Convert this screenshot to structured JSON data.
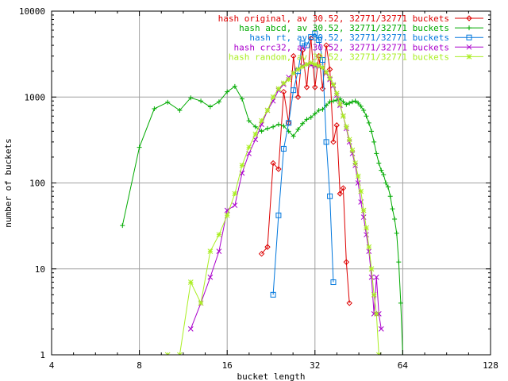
{
  "chart_data": {
    "type": "line",
    "xscale": "log2",
    "yscale": "log10",
    "xlim": [
      4,
      128
    ],
    "ylim": [
      1,
      10000
    ],
    "xticks": [
      4,
      8,
      16,
      32,
      64,
      128
    ],
    "xtick_labels": [
      "4",
      "8",
      "16",
      "32",
      "64",
      "128"
    ],
    "yticks": [
      1,
      10,
      100,
      1000,
      10000
    ],
    "ytick_labels": [
      "1",
      "10",
      "100",
      "1000",
      "10000"
    ],
    "xlabel": "bucket length",
    "ylabel": "number of buckets",
    "grid": true,
    "legend_position": "top-right",
    "series": [
      {
        "name": "hash original, av 30.52, 32771/32771 buckets",
        "color": "#dd0000",
        "marker": "diamond",
        "points": [
          [
            21,
            15
          ],
          [
            22,
            18
          ],
          [
            23,
            170
          ],
          [
            24,
            145
          ],
          [
            25,
            1150
          ],
          [
            26,
            500
          ],
          [
            27,
            3000
          ],
          [
            28,
            1000
          ],
          [
            29,
            3500
          ],
          [
            30,
            1300
          ],
          [
            31,
            4800
          ],
          [
            32,
            1300
          ],
          [
            33,
            3000
          ],
          [
            34,
            1250
          ],
          [
            35,
            4000
          ],
          [
            36,
            2100
          ],
          [
            37,
            300
          ],
          [
            38,
            470
          ],
          [
            39,
            75
          ],
          [
            40,
            87
          ],
          [
            41,
            12
          ],
          [
            42,
            4
          ]
        ]
      },
      {
        "name": "hash abcd, av 30.52, 32771/32771 buckets",
        "color": "#00aa00",
        "marker": "plus",
        "points": [
          [
            7,
            32
          ],
          [
            8,
            260
          ],
          [
            9,
            730
          ],
          [
            10,
            870
          ],
          [
            11,
            700
          ],
          [
            12,
            980
          ],
          [
            13,
            900
          ],
          [
            14,
            770
          ],
          [
            15,
            880
          ],
          [
            16,
            1150
          ],
          [
            17,
            1330
          ],
          [
            18,
            950
          ],
          [
            19,
            530
          ],
          [
            20,
            450
          ],
          [
            21,
            400
          ],
          [
            22,
            430
          ],
          [
            23,
            450
          ],
          [
            24,
            480
          ],
          [
            25,
            460
          ],
          [
            26,
            400
          ],
          [
            27,
            350
          ],
          [
            28,
            420
          ],
          [
            29,
            490
          ],
          [
            30,
            550
          ],
          [
            31,
            580
          ],
          [
            32,
            640
          ],
          [
            33,
            700
          ],
          [
            34,
            720
          ],
          [
            35,
            800
          ],
          [
            36,
            880
          ],
          [
            37,
            900
          ],
          [
            38,
            920
          ],
          [
            39,
            950
          ],
          [
            40,
            880
          ],
          [
            41,
            820
          ],
          [
            42,
            850
          ],
          [
            43,
            880
          ],
          [
            44,
            900
          ],
          [
            45,
            850
          ],
          [
            46,
            780
          ],
          [
            47,
            700
          ],
          [
            48,
            600
          ],
          [
            49,
            500
          ],
          [
            50,
            400
          ],
          [
            51,
            300
          ],
          [
            52,
            220
          ],
          [
            53,
            170
          ],
          [
            54,
            140
          ],
          [
            55,
            125
          ],
          [
            56,
            100
          ],
          [
            57,
            90
          ],
          [
            58,
            70
          ],
          [
            59,
            50
          ],
          [
            60,
            38
          ],
          [
            61,
            26
          ],
          [
            62,
            12
          ],
          [
            63,
            4
          ],
          [
            64,
            1
          ]
        ]
      },
      {
        "name": "hash rt, av 30.52, 32771/32771 buckets",
        "color": "#0077dd",
        "marker": "square",
        "points": [
          [
            23,
            5
          ],
          [
            24,
            42
          ],
          [
            25,
            250
          ],
          [
            26,
            500
          ],
          [
            27,
            1200
          ],
          [
            28,
            2000
          ],
          [
            29,
            4200
          ],
          [
            30,
            4000
          ],
          [
            31,
            5000
          ],
          [
            32,
            5500
          ],
          [
            33,
            4600
          ],
          [
            34,
            2700
          ],
          [
            35,
            300
          ],
          [
            36,
            70
          ],
          [
            37,
            7
          ]
        ]
      },
      {
        "name": "hash crc32, av 30.52, 32771/32771 buckets",
        "color": "#aa00cc",
        "marker": "cross",
        "points": [
          [
            12,
            2
          ],
          [
            13,
            4
          ],
          [
            14,
            8
          ],
          [
            15,
            16
          ],
          [
            16,
            48
          ],
          [
            17,
            55
          ],
          [
            18,
            130
          ],
          [
            19,
            220
          ],
          [
            20,
            320
          ],
          [
            21,
            480
          ],
          [
            22,
            700
          ],
          [
            23,
            900
          ],
          [
            24,
            1200
          ],
          [
            25,
            1400
          ],
          [
            26,
            1700
          ],
          [
            27,
            1900
          ],
          [
            28,
            2100
          ],
          [
            29,
            2300
          ],
          [
            30,
            2400
          ],
          [
            31,
            2350
          ],
          [
            32,
            2300
          ],
          [
            33,
            2250
          ],
          [
            34,
            2200
          ],
          [
            35,
            1900
          ],
          [
            36,
            1600
          ],
          [
            37,
            1350
          ],
          [
            38,
            1050
          ],
          [
            39,
            800
          ],
          [
            40,
            600
          ],
          [
            41,
            430
          ],
          [
            42,
            300
          ],
          [
            43,
            220
          ],
          [
            44,
            160
          ],
          [
            45,
            100
          ],
          [
            46,
            60
          ],
          [
            47,
            40
          ],
          [
            48,
            25
          ],
          [
            49,
            16
          ],
          [
            50,
            8
          ],
          [
            51,
            3
          ],
          [
            52,
            8
          ],
          [
            53,
            3
          ],
          [
            54,
            2
          ]
        ]
      },
      {
        "name": "hash random, av 30.52, 32771/32771 buckets",
        "color": "#aaee22",
        "marker": "star",
        "points": [
          [
            10,
            1
          ],
          [
            11,
            1
          ],
          [
            12,
            7
          ],
          [
            13,
            4
          ],
          [
            14,
            16
          ],
          [
            15,
            25
          ],
          [
            16,
            42
          ],
          [
            17,
            75
          ],
          [
            18,
            160
          ],
          [
            19,
            260
          ],
          [
            20,
            370
          ],
          [
            21,
            530
          ],
          [
            22,
            700
          ],
          [
            23,
            1000
          ],
          [
            24,
            1250
          ],
          [
            25,
            1450
          ],
          [
            26,
            1600
          ],
          [
            27,
            1900
          ],
          [
            28,
            2100
          ],
          [
            29,
            2250
          ],
          [
            30,
            2400
          ],
          [
            31,
            2500
          ],
          [
            32,
            2400
          ],
          [
            33,
            2300
          ],
          [
            34,
            2200
          ],
          [
            35,
            1950
          ],
          [
            36,
            1650
          ],
          [
            37,
            1400
          ],
          [
            38,
            1100
          ],
          [
            39,
            830
          ],
          [
            40,
            600
          ],
          [
            41,
            450
          ],
          [
            42,
            320
          ],
          [
            43,
            240
          ],
          [
            44,
            170
          ],
          [
            45,
            120
          ],
          [
            46,
            80
          ],
          [
            47,
            48
          ],
          [
            48,
            30
          ],
          [
            49,
            18
          ],
          [
            50,
            10
          ],
          [
            51,
            5
          ],
          [
            52,
            3
          ],
          [
            53,
            1
          ]
        ]
      }
    ]
  }
}
